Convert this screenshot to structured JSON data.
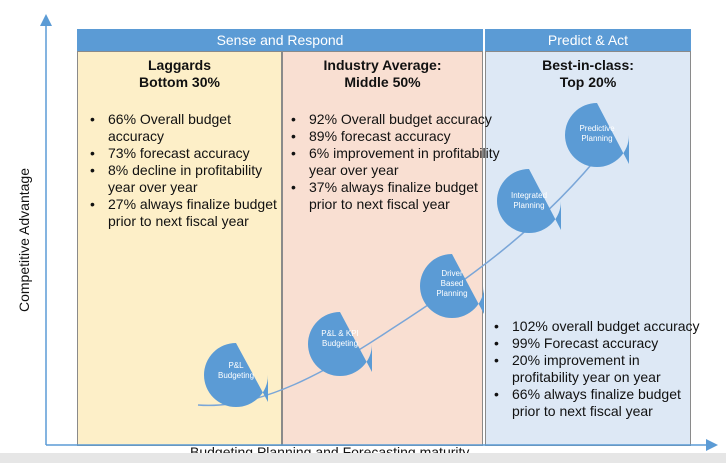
{
  "headers": {
    "left": "Sense and Respond",
    "right": "Predict & Act"
  },
  "columns": [
    {
      "title_line1": "Laggards",
      "title_line2": "Bottom 30%",
      "bullets": [
        "66% Overall budget accuracy",
        "73% forecast accuracy",
        "8% decline in profitability year over year",
        "27% always finalize budget prior to next fiscal year"
      ]
    },
    {
      "title_line1": "Industry Average:",
      "title_line2": "Middle 50%",
      "bullets": [
        "92% Overall budget accuracy",
        "89% forecast accuracy",
        "6% improvement in profitability year over year",
        "37% always finalize budget prior to next fiscal year"
      ]
    },
    {
      "title_line1": "Best-in-class:",
      "title_line2": "Top 20%",
      "bullets": [
        "102% overall budget accuracy",
        "99% Forecast accuracy",
        "20% improvement in profitability year on year",
        "66% always finalize budget prior to next fiscal year"
      ]
    }
  ],
  "stages": [
    {
      "line1": "P&L",
      "line2": "Budgeting",
      "line3": ""
    },
    {
      "line1": "P&L & KPI",
      "line2": "Budgeting",
      "line3": ""
    },
    {
      "line1": "Driver",
      "line2": "Based",
      "line3": "Planning"
    },
    {
      "line1": "Integrated",
      "line2": "Planning",
      "line3": ""
    },
    {
      "line1": "Predictive",
      "line2": "Planning",
      "line3": ""
    }
  ],
  "axes": {
    "x_label": "Budgeting Planning and Forecasting maturity",
    "y_label": "Competitive Advantage"
  },
  "colors": {
    "header": "#5b9bd5",
    "laggards_bg": "#fdefc8",
    "average_bg": "#f9dfd2",
    "best_bg": "#dde8f5",
    "bubble": "#5b9bd5",
    "axis": "#5b9bd5"
  }
}
